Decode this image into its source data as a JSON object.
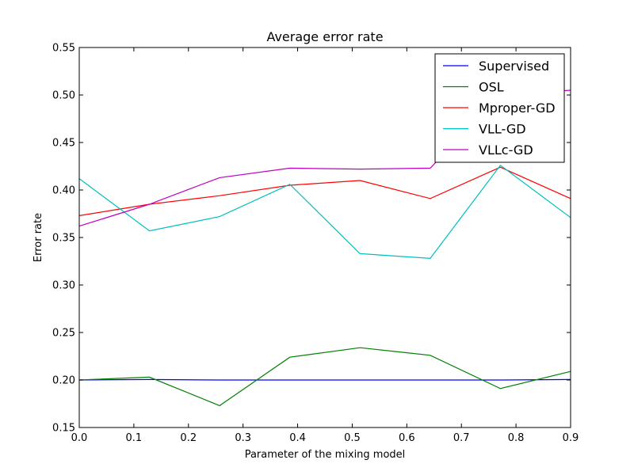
{
  "chart_data": {
    "type": "line",
    "title": "Average error rate",
    "xlabel": "Parameter of the mixing model",
    "ylabel": "Error rate",
    "xlim": [
      0.0,
      0.9
    ],
    "ylim": [
      0.15,
      0.55
    ],
    "xticks": [
      "0.0",
      "0.1",
      "0.2",
      "0.3",
      "0.4",
      "0.5",
      "0.6",
      "0.7",
      "0.8",
      "0.9"
    ],
    "yticks": [
      "0.15",
      "0.20",
      "0.25",
      "0.30",
      "0.35",
      "0.40",
      "0.45",
      "0.50",
      "0.55"
    ],
    "grid": false,
    "legend_position": "top-right",
    "x": [
      0.0,
      0.1286,
      0.2571,
      0.3857,
      0.5143,
      0.6429,
      0.7714,
      0.9
    ],
    "series": [
      {
        "name": "Supervised",
        "color": "#0000ff",
        "values": [
          0.2,
          0.2005,
          0.2,
          0.2,
          0.2,
          0.2,
          0.2,
          0.2005
        ]
      },
      {
        "name": "OSL",
        "color": "#008000",
        "values": [
          0.2,
          0.203,
          0.173,
          0.224,
          0.234,
          0.226,
          0.191,
          0.209
        ]
      },
      {
        "name": "Mproper-GD",
        "color": "#ff0000",
        "values": [
          0.373,
          0.385,
          0.394,
          0.405,
          0.41,
          0.391,
          0.424,
          0.391
        ]
      },
      {
        "name": "VLL-GD",
        "color": "#00bfbf",
        "values": [
          0.412,
          0.357,
          0.372,
          0.406,
          0.333,
          0.328,
          0.426,
          0.371
        ]
      },
      {
        "name": "VLLc-GD",
        "color": "#bf00bf",
        "values": [
          0.362,
          0.385,
          0.413,
          0.423,
          0.422,
          0.423,
          0.5,
          0.505
        ]
      }
    ]
  }
}
